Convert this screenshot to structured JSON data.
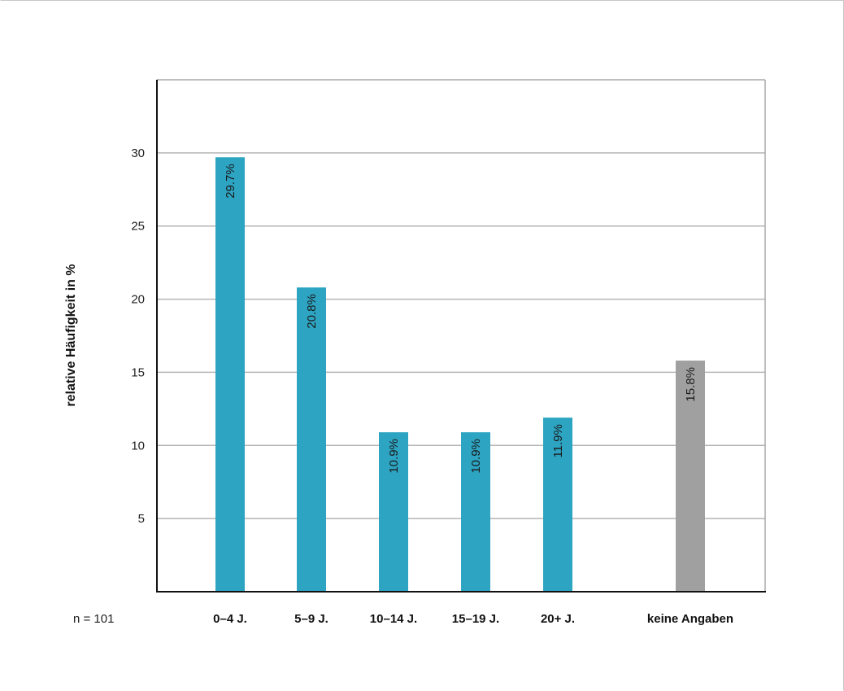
{
  "chart_data": {
    "type": "bar",
    "title": "",
    "xlabel": "",
    "ylabel": "relative  Häufigkeit in %",
    "ylim": [
      0,
      35
    ],
    "yticks": [
      5,
      10,
      15,
      20,
      25,
      30
    ],
    "grid": true,
    "legend": "none",
    "note": "n = 101",
    "categories": [
      "0–4 J.",
      "5–9 J.",
      "10–14 J.",
      "15–19 J.",
      "20+ J.",
      "keine Angaben"
    ],
    "values": [
      29.7,
      20.8,
      10.9,
      10.9,
      11.9,
      15.8
    ],
    "data_labels": [
      "29.7%",
      "20.8%",
      "10.9%",
      "10.9%",
      "11.9%",
      "15.8%"
    ],
    "colors": [
      "#2da4c2",
      "#2da4c2",
      "#2da4c2",
      "#2da4c2",
      "#2da4c2",
      "#a0a0a0"
    ]
  }
}
